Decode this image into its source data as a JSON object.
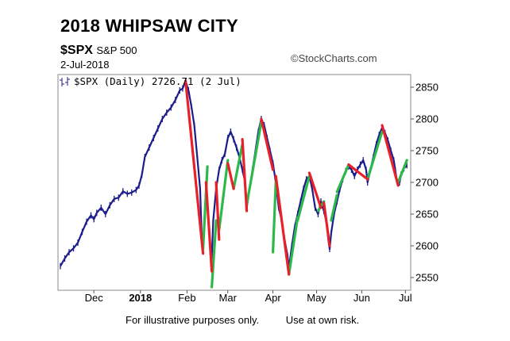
{
  "title": "2018 WHIPSAW CITY",
  "symbol": "$SPX",
  "symbol_name": "S&P 500",
  "date": "2-Jul-2018",
  "credit": "©StockCharts.com",
  "footer": {
    "note1": "For illustrative purposes only.",
    "note2": "Use at own risk."
  },
  "chart_data": {
    "type": "line",
    "legend": "$SPX (Daily) 2726.71 (2 Jul)",
    "legend_icon": "candlestick-icon",
    "xlabel": "",
    "ylabel": "",
    "y_tick_labels": [
      "2550",
      "2600",
      "2650",
      "2700",
      "2750",
      "2800",
      "2850"
    ],
    "ylim": [
      2530,
      2870
    ],
    "grid": false,
    "x_tick_labels": [
      {
        "label": "Dec",
        "bold": false,
        "day": 23
      },
      {
        "label": "2018",
        "bold": true,
        "day": 55
      },
      {
        "label": "Feb",
        "bold": false,
        "day": 87
      },
      {
        "label": "Mar",
        "bold": false,
        "day": 115
      },
      {
        "label": "Apr",
        "bold": false,
        "day": 146
      },
      {
        "label": "May",
        "bold": false,
        "day": 176
      },
      {
        "label": "Jun",
        "bold": false,
        "day": 207
      },
      {
        "label": "Jul",
        "bold": false,
        "day": 237
      }
    ],
    "x_range_days": [
      0,
      239
    ],
    "colors": {
      "price": "#1c1c8c",
      "down_swing": "#e8202a",
      "up_swing": "#2db84b"
    },
    "series": [
      {
        "values": [
          [
            0,
            2568
          ],
          [
            3,
            2580
          ],
          [
            6,
            2590
          ],
          [
            9,
            2596
          ],
          [
            12,
            2605
          ],
          [
            15,
            2622
          ],
          [
            18,
            2638
          ],
          [
            21,
            2648
          ],
          [
            23,
            2642
          ],
          [
            25,
            2652
          ],
          [
            28,
            2660
          ],
          [
            31,
            2650
          ],
          [
            34,
            2664
          ],
          [
            37,
            2674
          ],
          [
            40,
            2676
          ],
          [
            43,
            2686
          ],
          [
            46,
            2682
          ],
          [
            49,
            2684
          ],
          [
            52,
            2688
          ],
          [
            54,
            2695
          ],
          [
            56,
            2712
          ],
          [
            58,
            2740
          ],
          [
            61,
            2755
          ],
          [
            64,
            2770
          ],
          [
            67,
            2785
          ],
          [
            70,
            2800
          ],
          [
            73,
            2810
          ],
          [
            76,
            2818
          ],
          [
            79,
            2830
          ],
          [
            82,
            2845
          ],
          [
            84,
            2848
          ],
          [
            86,
            2860
          ],
          [
            88,
            2845
          ],
          [
            90,
            2820
          ],
          [
            92,
            2790
          ],
          [
            94,
            2740
          ],
          [
            96,
            2690
          ],
          [
            97,
            2620
          ],
          [
            98,
            2600
          ],
          [
            99,
            2640
          ],
          [
            100,
            2690
          ],
          [
            101,
            2665
          ],
          [
            102,
            2625
          ],
          [
            103,
            2600
          ],
          [
            104,
            2581
          ],
          [
            105,
            2640
          ],
          [
            107,
            2690
          ],
          [
            109,
            2720
          ],
          [
            111,
            2735
          ],
          [
            113,
            2745
          ],
          [
            115,
            2770
          ],
          [
            117,
            2780
          ],
          [
            119,
            2768
          ],
          [
            121,
            2755
          ],
          [
            123,
            2740
          ],
          [
            125,
            2720
          ],
          [
            127,
            2700
          ],
          [
            128,
            2660
          ],
          [
            130,
            2690
          ],
          [
            132,
            2720
          ],
          [
            134,
            2750
          ],
          [
            136,
            2780
          ],
          [
            138,
            2800
          ],
          [
            140,
            2790
          ],
          [
            142,
            2770
          ],
          [
            144,
            2750
          ],
          [
            146,
            2730
          ],
          [
            148,
            2700
          ],
          [
            150,
            2660
          ],
          [
            152,
            2640
          ],
          [
            154,
            2610
          ],
          [
            156,
            2585
          ],
          [
            157,
            2565
          ],
          [
            159,
            2600
          ],
          [
            161,
            2630
          ],
          [
            163,
            2650
          ],
          [
            165,
            2670
          ],
          [
            167,
            2690
          ],
          [
            169,
            2705
          ],
          [
            171,
            2710
          ],
          [
            173,
            2690
          ],
          [
            175,
            2660
          ],
          [
            177,
            2650
          ],
          [
            179,
            2670
          ],
          [
            181,
            2655
          ],
          [
            183,
            2635
          ],
          [
            184,
            2610
          ],
          [
            185,
            2595
          ],
          [
            186,
            2620
          ],
          [
            188,
            2650
          ],
          [
            190,
            2670
          ],
          [
            192,
            2690
          ],
          [
            194,
            2705
          ],
          [
            196,
            2718
          ],
          [
            198,
            2725
          ],
          [
            200,
            2720
          ],
          [
            202,
            2710
          ],
          [
            204,
            2720
          ],
          [
            206,
            2728
          ],
          [
            208,
            2735
          ],
          [
            210,
            2720
          ],
          [
            211,
            2700
          ],
          [
            213,
            2720
          ],
          [
            215,
            2740
          ],
          [
            217,
            2760
          ],
          [
            219,
            2775
          ],
          [
            221,
            2786
          ],
          [
            223,
            2778
          ],
          [
            225,
            2766
          ],
          [
            227,
            2750
          ],
          [
            229,
            2735
          ],
          [
            230,
            2720
          ],
          [
            231,
            2705
          ],
          [
            233,
            2700
          ],
          [
            234,
            2712
          ],
          [
            236,
            2722
          ],
          [
            238,
            2727
          ]
        ]
      },
      {
        "name": "down_swings",
        "segments": [
          [
            [
              86,
              2860
            ],
            [
              98,
              2588
            ]
          ],
          [
            [
              100,
              2700
            ],
            [
              104,
              2560
            ]
          ],
          [
            [
              107,
              2700
            ],
            [
              109,
              2610
            ]
          ],
          [
            [
              115,
              2730
            ],
            [
              119,
              2690
            ]
          ],
          [
            [
              125,
              2768
            ],
            [
              128,
              2655
            ]
          ],
          [
            [
              138,
              2800
            ],
            [
              146,
              2720
            ]
          ],
          [
            [
              148,
              2710
            ],
            [
              157,
              2555
            ]
          ],
          [
            [
              171,
              2715
            ],
            [
              179,
              2660
            ]
          ],
          [
            [
              181,
              2668
            ],
            [
              185,
              2600
            ]
          ],
          [
            [
              198,
              2728
            ],
            [
              211,
              2705
            ]
          ],
          [
            [
              221,
              2790
            ],
            [
              232,
              2695
            ]
          ]
        ]
      },
      {
        "name": "up_swings",
        "segments": [
          [
            [
              98,
              2595
            ],
            [
              101,
              2725
            ]
          ],
          [
            [
              104,
              2535
            ],
            [
              107,
              2640
            ]
          ],
          [
            [
              109,
              2625
            ],
            [
              115,
              2735
            ]
          ],
          [
            [
              119,
              2690
            ],
            [
              125,
              2760
            ]
          ],
          [
            [
              128,
              2665
            ],
            [
              138,
              2795
            ]
          ],
          [
            [
              146,
              2590
            ],
            [
              148,
              2700
            ]
          ],
          [
            [
              157,
              2555
            ],
            [
              163,
              2645
            ]
          ],
          [
            [
              163,
              2640
            ],
            [
              171,
              2710
            ]
          ],
          [
            [
              177,
              2655
            ],
            [
              181,
              2670
            ]
          ],
          [
            [
              186,
              2640
            ],
            [
              190,
              2680
            ]
          ],
          [
            [
              190,
              2685
            ],
            [
              198,
              2728
            ]
          ],
          [
            [
              211,
              2705
            ],
            [
              221,
              2780
            ]
          ],
          [
            [
              232,
              2700
            ],
            [
              238,
              2735
            ]
          ]
        ]
      }
    ]
  }
}
